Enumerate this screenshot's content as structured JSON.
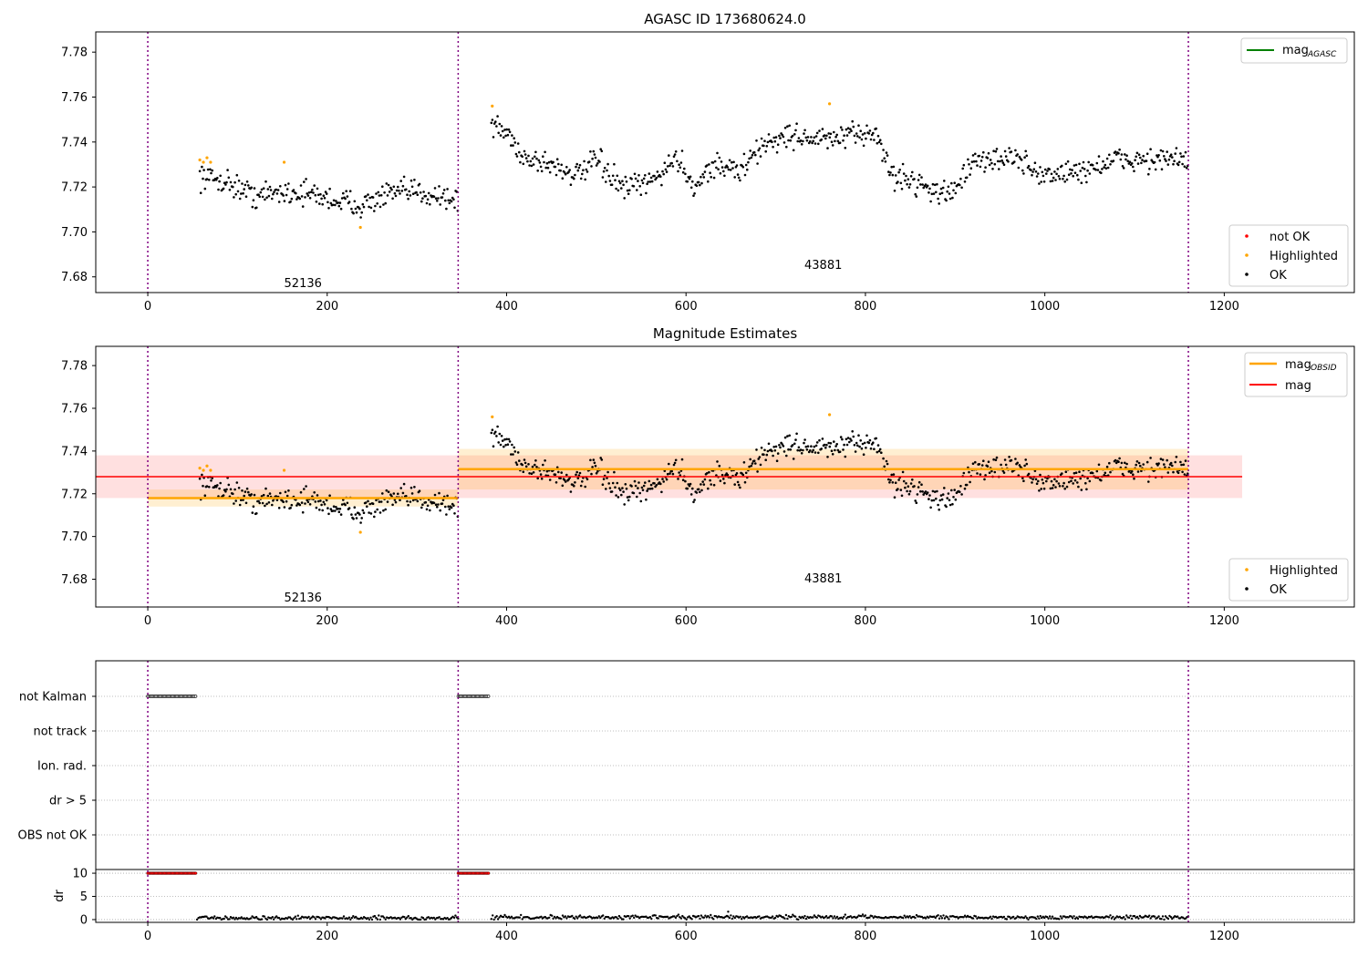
{
  "chart_data": [
    {
      "type": "scatter",
      "title": "AGASC ID 173680624.0",
      "xlim": [
        -58,
        1345
      ],
      "ylim": [
        7.673,
        7.789
      ],
      "xticks": [
        "0",
        "200",
        "400",
        "600",
        "800",
        "1000",
        "1200"
      ],
      "yticks": [
        "7.68",
        "7.70",
        "7.72",
        "7.74",
        "7.76",
        "7.78"
      ],
      "boundaries": [
        0,
        346,
        1160
      ],
      "annotations": [
        {
          "text": "52136",
          "x": 173,
          "y": 7.6755
        },
        {
          "text": "43881",
          "x": 753,
          "y": 7.6835
        }
      ],
      "legend_lines": [
        {
          "label": "mag",
          "sub": "AGASC",
          "color": "#008000"
        }
      ],
      "legend_points": [
        {
          "label": "not OK",
          "color": "#ff0000"
        },
        {
          "label": "Highlighted",
          "color": "#ffa500"
        },
        {
          "label": "OK",
          "color": "#000000"
        }
      ],
      "series": [
        {
          "name": "OK",
          "segments": [
            {
              "x0": 58,
              "x1": 346,
              "points": [
                [
                  58,
                  7.725
                ],
                [
                  90,
                  7.722
                ],
                [
                  120,
                  7.716
                ],
                [
                  150,
                  7.718
                ],
                [
                  180,
                  7.717
                ],
                [
                  210,
                  7.714
                ],
                [
                  240,
                  7.712
                ],
                [
                  270,
                  7.717
                ],
                [
                  300,
                  7.718
                ],
                [
                  330,
                  7.716
                ],
                [
                  346,
                  7.713
                ]
              ]
            },
            {
              "x0": 383,
              "x1": 1160,
              "points": [
                [
                  383,
                  7.748
                ],
                [
                  400,
                  7.744
                ],
                [
                  420,
                  7.733
                ],
                [
                  450,
                  7.73
                ],
                [
                  480,
                  7.725
                ],
                [
                  500,
                  7.732
                ],
                [
                  530,
                  7.719
                ],
                [
                  560,
                  7.722
                ],
                [
                  590,
                  7.733
                ],
                [
                  610,
                  7.72
                ],
                [
                  630,
                  7.73
                ],
                [
                  660,
                  7.727
                ],
                [
                  690,
                  7.74
                ],
                [
                  720,
                  7.743
                ],
                [
                  750,
                  7.741
                ],
                [
                  780,
                  7.742
                ],
                [
                  810,
                  7.745
                ],
                [
                  830,
                  7.725
                ],
                [
                  860,
                  7.722
                ],
                [
                  890,
                  7.716
                ],
                [
                  920,
                  7.73
                ],
                [
                  960,
                  7.734
                ],
                [
                  1000,
                  7.725
                ],
                [
                  1040,
                  7.727
                ],
                [
                  1080,
                  7.732
                ],
                [
                  1120,
                  7.732
                ],
                [
                  1160,
                  7.732
                ]
              ]
            }
          ]
        },
        {
          "name": "Highlighted",
          "points": [
            [
              58,
              7.732
            ],
            [
              62,
              7.731
            ],
            [
              66,
              7.733
            ],
            [
              70,
              7.731
            ],
            [
              152,
              7.731
            ],
            [
              237,
              7.702
            ],
            [
              384,
              7.756
            ],
            [
              760,
              7.757
            ]
          ]
        }
      ]
    },
    {
      "type": "scatter",
      "title": "Magnitude Estimates",
      "xlim": [
        -58,
        1345
      ],
      "ylim": [
        7.667,
        7.789
      ],
      "xticks": [
        "0",
        "200",
        "400",
        "600",
        "800",
        "1000",
        "1200"
      ],
      "yticks": [
        "7.68",
        "7.70",
        "7.72",
        "7.74",
        "7.76",
        "7.78"
      ],
      "boundaries": [
        0,
        346,
        1160
      ],
      "annotations": [
        {
          "text": "52136",
          "x": 173,
          "y": 7.6695
        },
        {
          "text": "43881",
          "x": 753,
          "y": 7.6785
        }
      ],
      "legend_lines": [
        {
          "label": "mag",
          "sub": "OBSID",
          "color": "#ffa500"
        },
        {
          "label": "mag",
          "sub": "",
          "color": "#ff0000"
        }
      ],
      "legend_points": [
        {
          "label": "Highlighted",
          "color": "#ffa500"
        },
        {
          "label": "OK",
          "color": "#000000"
        }
      ],
      "mag": {
        "value": 7.728,
        "band": [
          7.718,
          7.738
        ],
        "x": [
          -58,
          1220
        ]
      },
      "mag_obsid": [
        {
          "x0": 0,
          "x1": 346,
          "value": 7.718,
          "band": [
            7.714,
            7.722
          ]
        },
        {
          "x0": 346,
          "x1": 1160,
          "value": 7.7315,
          "band": [
            7.722,
            7.741
          ]
        }
      ]
    },
    {
      "type": "scatter",
      "flag_rows": [
        "not Kalman",
        "not track",
        "Ion. rad.",
        "dr > 5",
        "OBS not OK"
      ],
      "xlim": [
        -58,
        1345
      ],
      "flags": [
        {
          "row": "not Kalman",
          "x0": 0,
          "x1": 54
        },
        {
          "row": "not Kalman",
          "x0": 346,
          "x1": 381
        }
      ],
      "dr": {
        "ylabel": "dr",
        "yticks": [
          "0",
          "5",
          "10"
        ],
        "ylim": [
          -0.6,
          10.8
        ],
        "flagged_value": 10,
        "flagged_ranges": [
          [
            0,
            54
          ],
          [
            346,
            381
          ]
        ],
        "ok_segments": [
          {
            "x0": 55,
            "x1": 346,
            "level": 0.35
          },
          {
            "x0": 383,
            "x1": 1160,
            "level": 0.5
          }
        ],
        "outliers": [
          [
            647,
            1.7
          ]
        ]
      },
      "xticks": [
        "0",
        "200",
        "400",
        "600",
        "800",
        "1000",
        "1200"
      ]
    }
  ]
}
